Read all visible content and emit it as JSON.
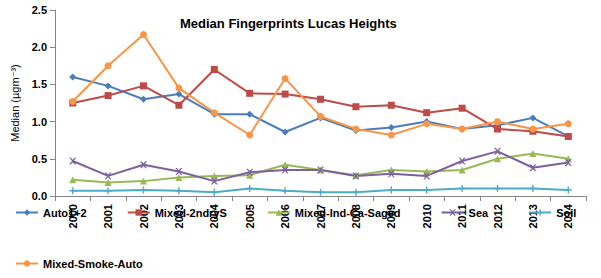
{
  "chart_data": {
    "type": "line",
    "title": "Median Fingerprints Lucas Heights",
    "y_label": "Median (µgm⁻³)",
    "categories": [
      "2000",
      "2001",
      "2002",
      "2003",
      "2004",
      "2005",
      "2006",
      "2007",
      "2008",
      "2009",
      "2010",
      "2011",
      "2012",
      "2013",
      "2014"
    ],
    "ylim": [
      0,
      2.5
    ],
    "yticks": [
      {
        "value": 0,
        "label": "0.0"
      },
      0.5,
      {
        "value": 1,
        "label": "1.0"
      },
      1.5,
      {
        "value": 2,
        "label": "2.0"
      },
      2.5
    ],
    "grid": false,
    "legend": "bottom",
    "series": [
      {
        "name": "Auto1+2",
        "color": "#4a7ebb",
        "marker": "diamond",
        "values": [
          1.6,
          1.48,
          1.3,
          1.37,
          1.1,
          1.1,
          0.86,
          1.05,
          0.88,
          0.92,
          1.0,
          0.9,
          0.95,
          1.05,
          0.8
        ]
      },
      {
        "name": "Mixed-2ndryS",
        "color": "#be4b48",
        "marker": "square",
        "values": [
          1.25,
          1.35,
          1.48,
          1.22,
          1.7,
          1.38,
          1.37,
          1.3,
          1.2,
          1.22,
          1.12,
          1.18,
          0.9,
          0.87,
          0.8
        ]
      },
      {
        "name": "Mixed-Ind-Ca-Saged",
        "color": "#98b954",
        "marker": "triangle",
        "values": [
          0.22,
          0.18,
          0.2,
          0.25,
          0.27,
          0.28,
          0.42,
          0.35,
          0.28,
          0.35,
          0.33,
          0.35,
          0.5,
          0.57,
          0.5
        ]
      },
      {
        "name": "Sea",
        "color": "#7d60a0",
        "marker": "x",
        "values": [
          0.47,
          0.27,
          0.42,
          0.33,
          0.2,
          0.32,
          0.35,
          0.35,
          0.27,
          0.3,
          0.27,
          0.47,
          0.6,
          0.38,
          0.45
        ]
      },
      {
        "name": "Soil",
        "color": "#4bacc6",
        "marker": "star",
        "values": [
          0.07,
          0.07,
          0.08,
          0.07,
          0.05,
          0.1,
          0.07,
          0.05,
          0.05,
          0.08,
          0.08,
          0.1,
          0.1,
          0.1,
          0.08
        ]
      },
      {
        "name": "Mixed-Smoke-Auto",
        "color": "#f79646",
        "marker": "circle",
        "values": [
          1.27,
          1.75,
          2.17,
          1.45,
          1.12,
          0.82,
          1.58,
          1.07,
          0.9,
          0.82,
          0.97,
          0.9,
          1.0,
          0.9,
          0.97
        ]
      }
    ]
  }
}
